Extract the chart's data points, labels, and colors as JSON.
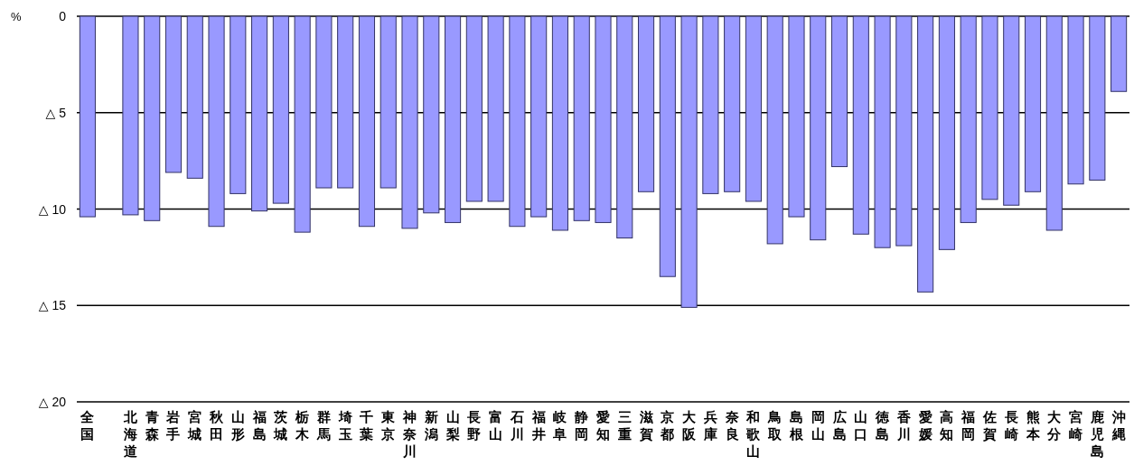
{
  "chart_data": {
    "type": "bar",
    "ylabel": "%",
    "categories": [
      "全国",
      null,
      "北海道",
      "青森",
      "岩手",
      "宮城",
      "秋田",
      "山形",
      "福島",
      "茨城",
      "栃木",
      "群馬",
      "埼玉",
      "千葉",
      "東京",
      "神奈川",
      "新潟",
      "山梨",
      "長野",
      "富山",
      "石川",
      "福井",
      "岐阜",
      "静岡",
      "愛知",
      "三重",
      "滋賀",
      "京都",
      "大阪",
      "兵庫",
      "奈良",
      "和歌山",
      "鳥取",
      "島根",
      "岡山",
      "広島",
      "山口",
      "徳島",
      "香川",
      "愛媛",
      "高知",
      "福岡",
      "佐賀",
      "長崎",
      "熊本",
      "大分",
      "宮崎",
      "鹿児島",
      "沖縄"
    ],
    "values": [
      10.4,
      null,
      10.3,
      10.6,
      8.1,
      8.4,
      10.9,
      9.2,
      10.1,
      9.7,
      11.2,
      8.9,
      8.9,
      10.9,
      8.9,
      11.0,
      10.2,
      10.7,
      9.6,
      9.6,
      10.9,
      10.4,
      11.1,
      10.6,
      10.7,
      11.5,
      9.1,
      13.5,
      15.1,
      9.2,
      9.1,
      9.6,
      11.8,
      10.4,
      11.6,
      7.8,
      11.3,
      12.0,
      11.9,
      14.3,
      12.1,
      10.7,
      9.5,
      9.8,
      9.1,
      11.1,
      8.7,
      8.5,
      3.9
    ],
    "color": "#9999ff",
    "ylim": [
      20,
      0
    ],
    "yticks": [
      {
        "value": 0,
        "label": "0"
      },
      {
        "value": 5,
        "label": "△ 5"
      },
      {
        "value": 10,
        "label": "△ 10"
      },
      {
        "value": 15,
        "label": "△ 15"
      },
      {
        "value": 20,
        "label": "△ 20"
      }
    ],
    "grid": "y"
  }
}
